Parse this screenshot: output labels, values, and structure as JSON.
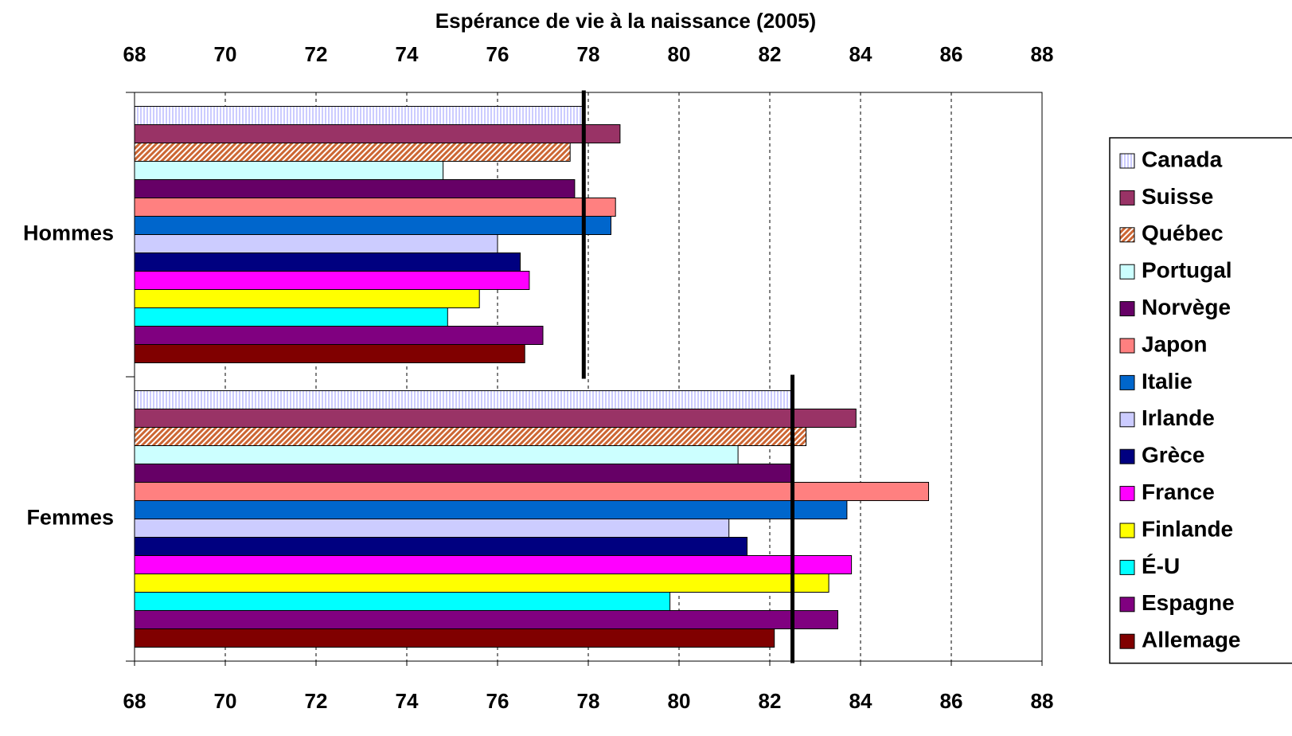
{
  "chart_data": {
    "type": "barh",
    "title": "Espérance de vie à la naissance  (2005)",
    "categories": [
      "Hommes",
      "Femmes"
    ],
    "series": [
      {
        "name": "Canada",
        "color": "#ccccff",
        "pattern": "vertical",
        "values": [
          77.9,
          82.5
        ]
      },
      {
        "name": "Suisse",
        "color": "#993366",
        "values": [
          78.7,
          83.9
        ]
      },
      {
        "name": "Québec",
        "color": "#cc6633",
        "pattern": "diagonal",
        "values": [
          77.6,
          82.8
        ]
      },
      {
        "name": "Portugal",
        "color": "#ccffff",
        "values": [
          74.8,
          81.3
        ]
      },
      {
        "name": "Norvège",
        "color": "#660066",
        "values": [
          77.7,
          82.5
        ]
      },
      {
        "name": "Japon",
        "color": "#ff8080",
        "values": [
          78.6,
          85.5
        ]
      },
      {
        "name": "Italie",
        "color": "#0066cc",
        "values": [
          78.5,
          83.7
        ]
      },
      {
        "name": "Irlande",
        "color": "#ccccff",
        "values": [
          76.0,
          81.1
        ]
      },
      {
        "name": "Grèce",
        "color": "#000080",
        "values": [
          76.5,
          81.5
        ]
      },
      {
        "name": "France",
        "color": "#ff00ff",
        "values": [
          76.7,
          83.8
        ]
      },
      {
        "name": "Finlande",
        "color": "#ffff00",
        "values": [
          75.6,
          83.3
        ]
      },
      {
        "name": "É-U",
        "color": "#00ffff",
        "values": [
          74.9,
          79.8
        ]
      },
      {
        "name": "Espagne",
        "color": "#800080",
        "values": [
          77.0,
          83.5
        ]
      },
      {
        "name": "Allemage",
        "color": "#800000",
        "values": [
          76.6,
          82.1
        ]
      }
    ],
    "reference_lines": [
      77.9,
      82.5
    ],
    "xlim": [
      68,
      88
    ],
    "xticks": [
      68,
      70,
      72,
      74,
      76,
      78,
      80,
      82,
      84,
      86,
      88
    ],
    "grid": true,
    "legend": "right"
  }
}
